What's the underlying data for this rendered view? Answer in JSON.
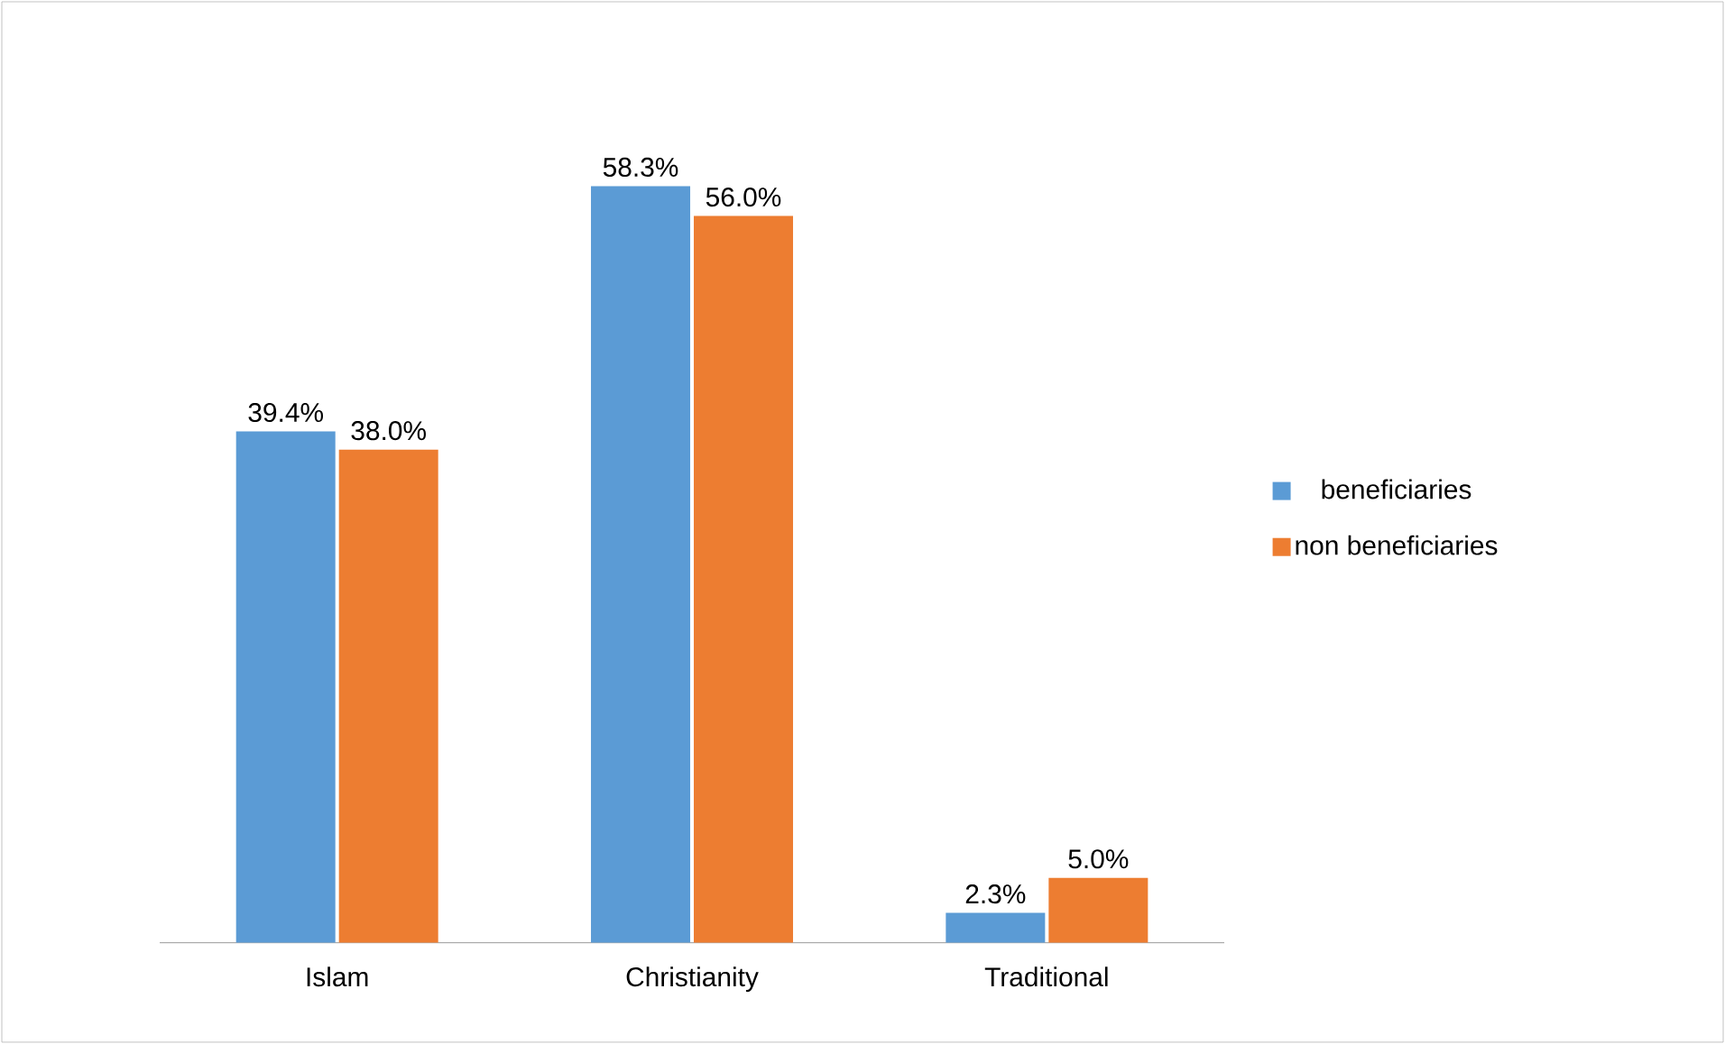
{
  "chart_data": {
    "type": "bar",
    "categories": [
      "Islam",
      "Christianity",
      "Traditional"
    ],
    "series": [
      {
        "name": "beneficiaries",
        "color": "#5b9bd5",
        "values": [
          39.4,
          58.3,
          2.3
        ],
        "value_labels": [
          "39.4%",
          "58.3%",
          "2.3%"
        ]
      },
      {
        "name": "non beneficiaries",
        "color": "#ed7d31",
        "values": [
          38.0,
          56.0,
          5.0
        ],
        "value_labels": [
          "38.0%",
          "56.0%",
          "5.0%"
        ]
      }
    ],
    "legend": "right"
  }
}
